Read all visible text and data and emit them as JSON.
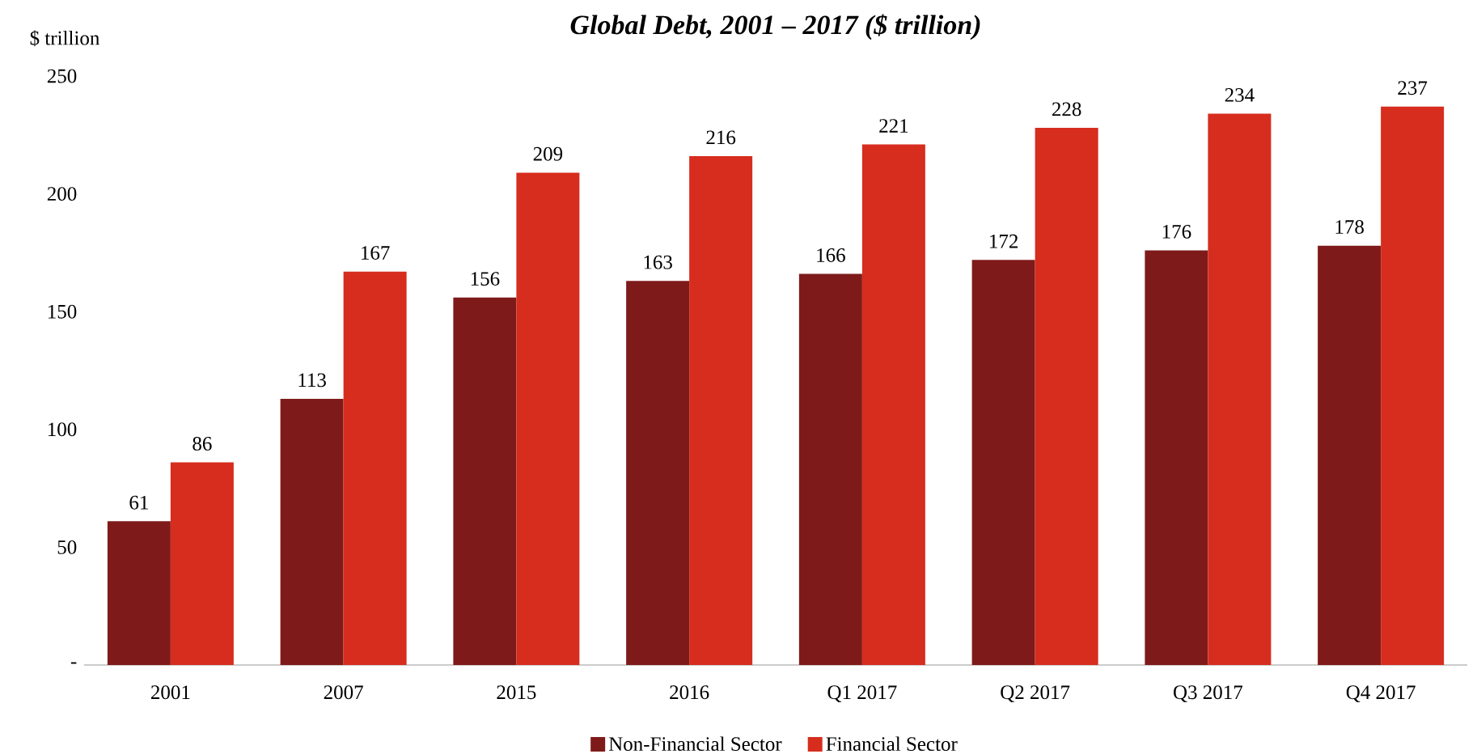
{
  "chart_data": {
    "type": "bar",
    "title": "Global Debt, 2001 – 2017 ($ trillion)",
    "ylabel": "$ trillion",
    "categories": [
      "2001",
      "2007",
      "2015",
      "2016",
      "Q1 2017",
      "Q2 2017",
      "Q3 2017",
      "Q4 2017"
    ],
    "series": [
      {
        "name": "Non-Financial Sector",
        "color": "#7f1a1a",
        "values": [
          61,
          113,
          156,
          163,
          166,
          172,
          176,
          178
        ]
      },
      {
        "name": "Financial Sector",
        "color": "#d62d1e",
        "values": [
          86,
          167,
          209,
          216,
          221,
          228,
          234,
          237
        ]
      }
    ],
    "ylim": [
      0,
      250
    ],
    "yticks": [
      {
        "value": 0,
        "label": "-"
      },
      50,
      100,
      150,
      200,
      250
    ],
    "data_labels": true,
    "legend": "bottom"
  }
}
